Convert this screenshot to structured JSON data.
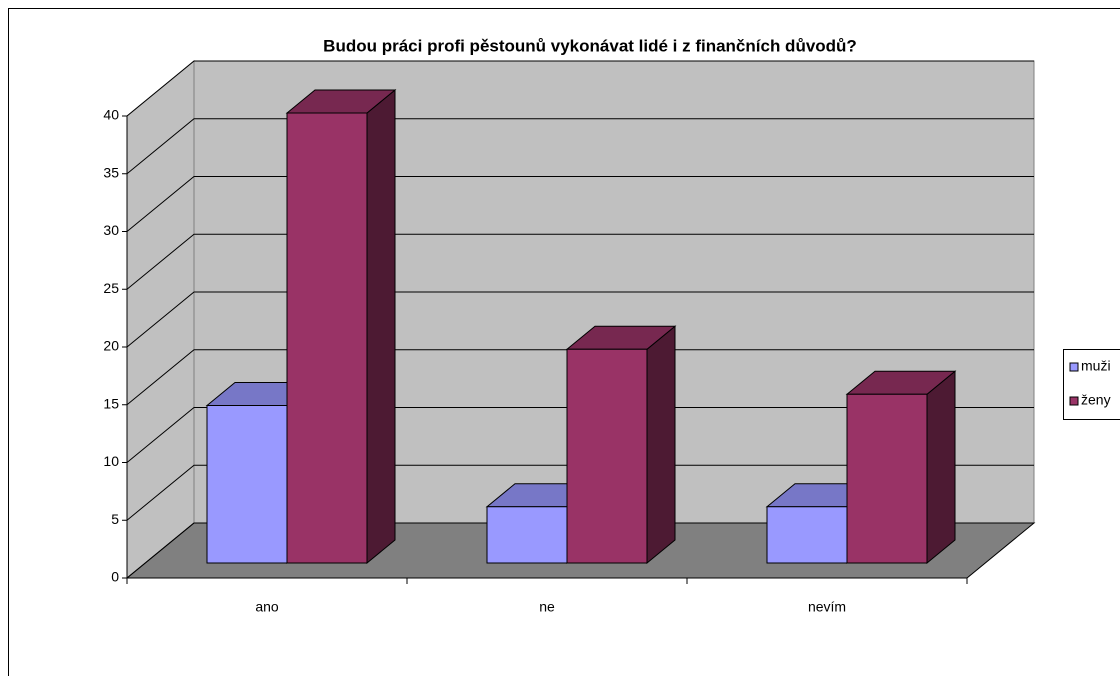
{
  "chart_data": {
    "type": "bar3d",
    "title": "Budou práci profi pěstounů vykonávat lidé i z finančních důvodů?",
    "categories": [
      "ano",
      "ne",
      "nevím"
    ],
    "series": [
      {
        "name": "muži",
        "color": "#9999ff",
        "values": [
          14,
          5,
          5
        ]
      },
      {
        "name": "ženy",
        "color": "#993366",
        "values": [
          40,
          19,
          15
        ]
      }
    ],
    "ylim": [
      0,
      40
    ],
    "yticks": [
      0,
      5,
      10,
      15,
      20,
      25,
      30,
      35,
      40
    ],
    "grid": true,
    "legend": "right"
  }
}
